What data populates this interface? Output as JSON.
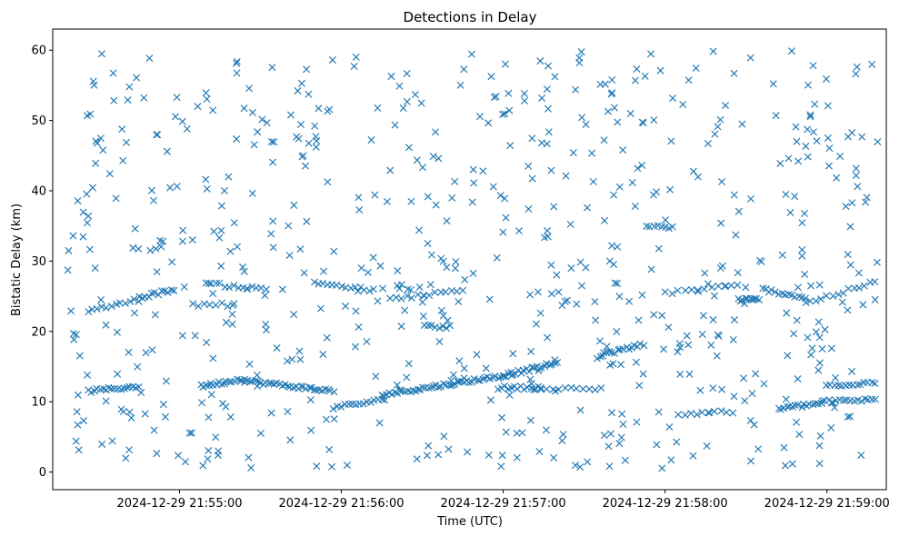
{
  "chart_data": {
    "type": "scatter",
    "title": "Detections in Delay",
    "xlabel": "Time (UTC)",
    "ylabel": "Bistatic Delay (km)",
    "x_unit": "time",
    "xlim": [
      "2024-12-29 21:54:13",
      "2024-12-29 21:59:22"
    ],
    "ylim": [
      -2.5,
      63
    ],
    "x_ticks": [
      "2024-12-29 21:55:00",
      "2024-12-29 21:56:00",
      "2024-12-29 21:57:00",
      "2024-12-29 21:58:00",
      "2024-12-29 21:59:00"
    ],
    "y_ticks": [
      0,
      10,
      20,
      30,
      40,
      50,
      60
    ],
    "marker": "x",
    "color": "#1f77b4",
    "grid": false,
    "legend": "none",
    "series": [
      {
        "tracks": [
          {
            "t_start": "2024-12-29 21:54:26",
            "t_end": "2024-12-29 21:54:45",
            "y_start": 11.5,
            "y_end": 12.2,
            "count": 18
          },
          {
            "t_start": "2024-12-29 21:55:08",
            "t_end": "2024-12-29 21:55:24",
            "y_start": 12.2,
            "y_end": 13.3,
            "count": 18
          },
          {
            "t_start": "2024-12-29 21:55:24",
            "t_end": "2024-12-29 21:55:57",
            "y_start": 13.0,
            "y_end": 11.5,
            "count": 34
          },
          {
            "t_start": "2024-12-29 21:55:57",
            "t_end": "2024-12-29 21:56:15",
            "y_start": 9.2,
            "y_end": 10.2,
            "count": 14
          },
          {
            "t_start": "2024-12-29 21:56:15",
            "t_end": "2024-12-29 21:57:00",
            "y_start": 11.0,
            "y_end": 13.7,
            "count": 48
          },
          {
            "t_start": "2024-12-29 21:57:00",
            "t_end": "2024-12-29 21:57:20",
            "y_start": 13.7,
            "y_end": 15.5,
            "count": 22
          },
          {
            "t_start": "2024-12-29 21:57:36",
            "t_end": "2024-12-29 21:57:52",
            "y_start": 16.6,
            "y_end": 18.2,
            "count": 16
          },
          {
            "t_start": "2024-12-29 21:56:58",
            "t_end": "2024-12-29 21:57:14",
            "y_start": 12.0,
            "y_end": 12.0,
            "count": 14
          },
          {
            "t_start": "2024-12-29 21:57:12",
            "t_end": "2024-12-29 21:57:36",
            "y_start": 11.8,
            "y_end": 11.8,
            "count": 12
          },
          {
            "t_start": "2024-12-29 21:54:26",
            "t_end": "2024-12-29 21:54:45",
            "y_start": 23.0,
            "y_end": 24.5,
            "count": 12
          },
          {
            "t_start": "2024-12-29 21:54:45",
            "t_end": "2024-12-29 21:54:58",
            "y_start": 24.8,
            "y_end": 26.0,
            "count": 12
          },
          {
            "t_start": "2024-12-29 21:55:10",
            "t_end": "2024-12-29 21:55:32",
            "y_start": 26.8,
            "y_end": 26.0,
            "count": 14
          },
          {
            "t_start": "2024-12-29 21:55:50",
            "t_end": "2024-12-29 21:56:12",
            "y_start": 27.0,
            "y_end": 25.8,
            "count": 14
          },
          {
            "t_start": "2024-12-29 21:56:18",
            "t_end": "2024-12-29 21:56:45",
            "y_start": 24.6,
            "y_end": 25.8,
            "count": 14
          },
          {
            "t_start": "2024-12-29 21:58:00",
            "t_end": "2024-12-29 21:58:27",
            "y_start": 25.5,
            "y_end": 26.6,
            "count": 12
          },
          {
            "t_start": "2024-12-29 21:58:27",
            "t_end": "2024-12-29 21:58:35",
            "y_start": 24.5,
            "y_end": 24.5,
            "count": 10
          },
          {
            "t_start": "2024-12-29 21:58:36",
            "t_end": "2024-12-29 21:58:52",
            "y_start": 26.0,
            "y_end": 24.8,
            "count": 14
          },
          {
            "t_start": "2024-12-29 21:58:52",
            "t_end": "2024-12-29 21:59:18",
            "y_start": 24.0,
            "y_end": 27.0,
            "count": 14
          },
          {
            "t_start": "2024-12-29 21:58:42",
            "t_end": "2024-12-29 21:58:58",
            "y_start": 9.0,
            "y_end": 9.8,
            "count": 16
          },
          {
            "t_start": "2024-12-29 21:58:58",
            "t_end": "2024-12-29 21:59:18",
            "y_start": 10.0,
            "y_end": 10.3,
            "count": 16
          },
          {
            "t_start": "2024-12-29 21:59:00",
            "t_end": "2024-12-29 21:59:18",
            "y_start": 12.3,
            "y_end": 12.8,
            "count": 14
          },
          {
            "t_start": "2024-12-29 21:58:05",
            "t_end": "2024-12-29 21:58:25",
            "y_start": 8.3,
            "y_end": 8.6,
            "count": 10
          },
          {
            "t_start": "2024-12-29 21:56:31",
            "t_end": "2024-12-29 21:56:40",
            "y_start": 20.7,
            "y_end": 20.7,
            "count": 8
          },
          {
            "t_start": "2024-12-29 21:57:53",
            "t_end": "2024-12-29 21:58:03",
            "y_start": 34.8,
            "y_end": 34.8,
            "count": 8
          },
          {
            "t_start": "2024-12-29 21:55:05",
            "t_end": "2024-12-29 21:55:20",
            "y_start": 23.8,
            "y_end": 23.8,
            "count": 8
          }
        ],
        "scatter": {
          "t_start": "2024-12-29 21:54:18",
          "t_end": "2024-12-29 21:59:20",
          "y_min": 0.5,
          "y_max": 60,
          "count": 650
        }
      }
    ]
  }
}
